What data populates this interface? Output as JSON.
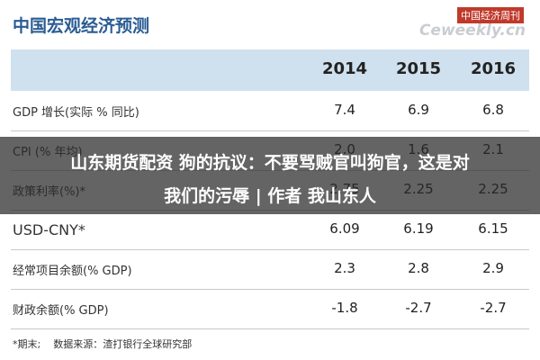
{
  "header": {
    "title": "中国宏观经济预测",
    "logo_top": "中国经济周刊",
    "logo_bottom": "Ceweekly.cn"
  },
  "table": {
    "columns": [
      "2014",
      "2015",
      "2016"
    ],
    "rows": [
      [
        "GDP 增长(实际 % 同比)",
        "7.4",
        "6.9",
        "6.8"
      ],
      [
        "CPI (% 年均)",
        "2.0",
        "1.6",
        "2.1"
      ],
      [
        "政策利率(%)*",
        "2.75",
        "2.25",
        "2.25"
      ],
      [
        "USD-CNY*",
        "6.09",
        "6.19",
        "6.15"
      ],
      [
        "经常项目余额(% GDP)",
        "2.3",
        "2.8",
        "2.9"
      ],
      [
        "财政余额(% GDP)",
        "-1.8",
        "-2.7",
        "-2.7"
      ]
    ]
  },
  "footnote": "*期末;    数据来源：渣打银行全球研究部",
  "overlay": {
    "line1": "山东期货配资 狗的抗议：不要骂贼官叫狗官，这是对",
    "line2": "我们的污辱 | 作者 我山东人"
  }
}
